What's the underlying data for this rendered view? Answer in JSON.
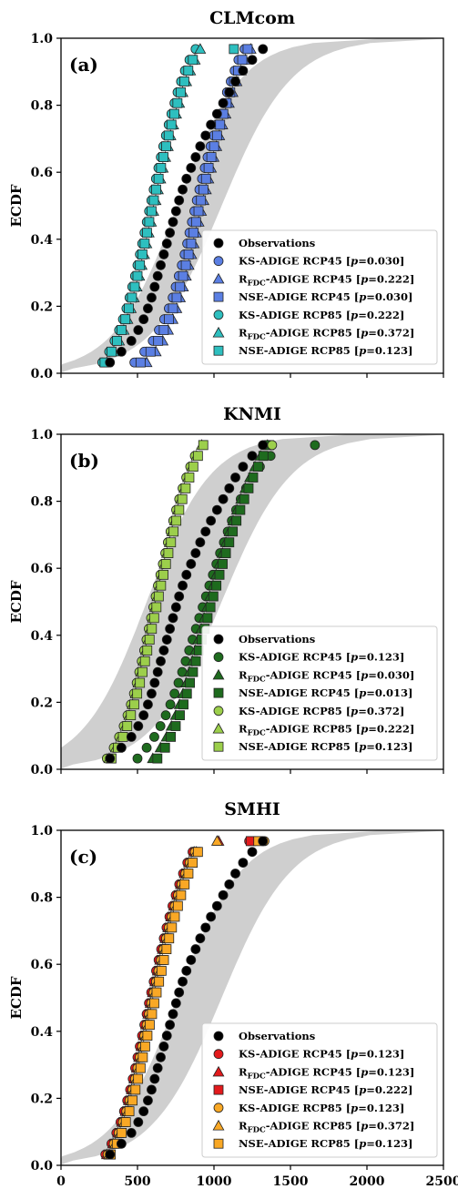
{
  "chart_data": [
    {
      "type": "scatter",
      "title": "CLMcom",
      "panel_label": "(a)",
      "ylabel": "ECDF",
      "xlim": [
        0,
        2500
      ],
      "ylim": [
        0,
        1
      ],
      "xticks": [
        "0",
        "500",
        "1000",
        "1500",
        "2000",
        "2500"
      ],
      "yticks": [
        "0.0",
        "0.2",
        "0.4",
        "0.6",
        "0.8",
        "1.0"
      ],
      "show_xticklabels": false,
      "legend_position": "lower-right",
      "band": {
        "lower_median": 760,
        "upper_median": 1050
      },
      "series": [
        {
          "key": "obs",
          "name": "Observations",
          "marker": "circle",
          "color": "#000000",
          "values": [
            320,
            395,
            460,
            505,
            540,
            568,
            592,
            612,
            632,
            652,
            672,
            692,
            712,
            732,
            752,
            772,
            795,
            820,
            850,
            880,
            910,
            945,
            980,
            1020,
            1060,
            1100,
            1140,
            1190,
            1250,
            1320
          ]
        },
        {
          "key": "ks45",
          "name_main": "KS-ADIGE RCP45 [",
          "name_p": "p",
          "name_tail": "=0.030]",
          "marker": "circle",
          "color": "#5b7fe3",
          "values": [
            480,
            545,
            600,
            640,
            675,
            705,
            730,
            750,
            770,
            790,
            808,
            825,
            840,
            856,
            872,
            888,
            905,
            922,
            940,
            958,
            978,
            998,
            1018,
            1040,
            1062,
            1085,
            1110,
            1135,
            1160,
            1200
          ]
        },
        {
          "key": "rfdc45",
          "sub": true,
          "name_pre": "R",
          "name_subscript": "FDC",
          "name_main": "-ADIGE RCP45 [",
          "name_p": "p",
          "name_tail": "=0.222]",
          "marker": "triangle",
          "color": "#5b7fe3",
          "values": [
            560,
            620,
            665,
            700,
            730,
            755,
            778,
            798,
            817,
            835,
            852,
            868,
            884,
            900,
            916,
            932,
            948,
            964,
            981,
            998,
            1016,
            1035,
            1055,
            1076,
            1098,
            1122,
            1148,
            1176,
            1206,
            1240
          ]
        },
        {
          "key": "nse45",
          "name_main": "NSE-ADIGE RCP45 [",
          "name_p": "p",
          "name_tail": "=0.030]",
          "marker": "square",
          "color": "#5b7fe3",
          "values": [
            520,
            585,
            635,
            672,
            705,
            732,
            756,
            778,
            798,
            816,
            834,
            851,
            867,
            883,
            899,
            915,
            931,
            948,
            965,
            983,
            1001,
            1020,
            1040,
            1061,
            1083,
            1106,
            1131,
            1157,
            1185,
            1220
          ]
        },
        {
          "key": "ks85",
          "name_main": "KS-ADIGE RCP85 [",
          "name_p": "p",
          "name_tail": "=0.222]",
          "marker": "circle",
          "color": "#2ebfbf",
          "values": [
            270,
            315,
            350,
            380,
            405,
            428,
            448,
            466,
            484,
            500,
            516,
            531,
            546,
            561,
            576,
            591,
            606,
            621,
            637,
            653,
            669,
            686,
            704,
            722,
            742,
            762,
            785,
            810,
            840,
            880
          ]
        },
        {
          "key": "rfdc85",
          "sub": true,
          "name_pre": "R",
          "name_subscript": "FDC",
          "name_main": "-ADIGE RCP85 [",
          "name_p": "p",
          "name_tail": "=0.372]",
          "marker": "triangle",
          "color": "#2ebfbf",
          "values": [
            300,
            345,
            380,
            410,
            435,
            457,
            477,
            495,
            512,
            528,
            544,
            559,
            574,
            589,
            604,
            619,
            634,
            650,
            666,
            682,
            699,
            716,
            734,
            753,
            773,
            795,
            819,
            845,
            875,
            910
          ]
        },
        {
          "key": "nse85",
          "name_main": "NSE-ADIGE RCP85 [",
          "name_p": "p",
          "name_tail": "=0.123]",
          "marker": "square",
          "color": "#2ebfbf",
          "values": [
            285,
            330,
            366,
            396,
            421,
            444,
            464,
            482,
            500,
            516,
            532,
            547,
            562,
            577,
            592,
            607,
            622,
            638,
            654,
            670,
            687,
            704,
            722,
            741,
            761,
            783,
            806,
            832,
            862,
            1130
          ]
        }
      ]
    },
    {
      "type": "scatter",
      "title": "KNMI",
      "panel_label": "(b)",
      "ylabel": "ECDF",
      "xlim": [
        0,
        2500
      ],
      "ylim": [
        0,
        1
      ],
      "xticks": [
        "0",
        "500",
        "1000",
        "1500",
        "2000",
        "2500"
      ],
      "yticks": [
        "0.0",
        "0.2",
        "0.4",
        "0.6",
        "0.8",
        "1.0"
      ],
      "show_xticklabels": false,
      "legend_position": "lower-right",
      "band": {
        "lower_median": 560,
        "upper_median": 1050
      },
      "series": [
        {
          "key": "obs",
          "name": "Observations",
          "marker": "circle",
          "color": "#000000",
          "values": [
            320,
            395,
            460,
            505,
            540,
            568,
            592,
            612,
            632,
            652,
            672,
            692,
            712,
            732,
            752,
            772,
            795,
            820,
            850,
            880,
            910,
            945,
            980,
            1020,
            1060,
            1100,
            1140,
            1190,
            1250,
            1320
          ]
        },
        {
          "key": "ks45",
          "name_main": "KS-ADIGE RCP45 [",
          "name_p": "p",
          "name_tail": "=0.123]",
          "marker": "circle",
          "color": "#1e6b1e",
          "values": [
            500,
            560,
            610,
            650,
            685,
            715,
            742,
            768,
            792,
            815,
            838,
            860,
            882,
            904,
            926,
            948,
            970,
            993,
            1016,
            1040,
            1065,
            1090,
            1117,
            1145,
            1175,
            1210,
            1250,
            1300,
            1370,
            1660
          ]
        },
        {
          "key": "rfdc45",
          "sub": true,
          "name_pre": "R",
          "name_subscript": "FDC",
          "name_main": "-ADIGE RCP45 [",
          "name_p": "p",
          "name_tail": "=0.030]",
          "marker": "triangle",
          "color": "#1e6b1e",
          "values": [
            600,
            650,
            690,
            722,
            750,
            775,
            798,
            820,
            840,
            860,
            879,
            898,
            917,
            936,
            955,
            974,
            994,
            1014,
            1035,
            1056,
            1078,
            1101,
            1125,
            1150,
            1177,
            1205,
            1235,
            1268,
            1305,
            1350
          ]
        },
        {
          "key": "nse45",
          "name_main": "NSE-ADIGE RCP45 [",
          "name_p": "p",
          "name_tail": "=0.013]",
          "marker": "square",
          "color": "#1e6b1e",
          "values": [
            630,
            680,
            718,
            750,
            777,
            801,
            823,
            843,
            863,
            882,
            901,
            920,
            939,
            958,
            977,
            996,
            1016,
            1036,
            1057,
            1078,
            1100,
            1123,
            1147,
            1172,
            1198,
            1226,
            1256,
            1288,
            1323,
            1360
          ]
        },
        {
          "key": "ks85",
          "name_main": "KS-ADIGE RCP85 [",
          "name_p": "p",
          "name_tail": "=0.372]",
          "marker": "circle",
          "color": "#9ccf4b",
          "values": [
            300,
            345,
            380,
            410,
            435,
            457,
            477,
            495,
            512,
            528,
            544,
            559,
            574,
            589,
            604,
            619,
            634,
            650,
            666,
            682,
            699,
            716,
            734,
            753,
            773,
            795,
            819,
            845,
            875,
            1380
          ]
        },
        {
          "key": "rfdc85",
          "sub": true,
          "name_pre": "R",
          "name_subscript": "FDC",
          "name_main": "-ADIGE RCP85 [",
          "name_p": "p",
          "name_tail": "=0.222]",
          "marker": "triangle",
          "color": "#9ccf4b",
          "values": [
            315,
            358,
            392,
            421,
            446,
            468,
            488,
            506,
            523,
            539,
            555,
            570,
            585,
            600,
            615,
            630,
            645,
            661,
            677,
            693,
            710,
            727,
            745,
            764,
            784,
            806,
            830,
            856,
            886,
            920
          ]
        },
        {
          "key": "nse85",
          "name_main": "NSE-ADIGE RCP85 [",
          "name_p": "p",
          "name_tail": "=0.123]",
          "marker": "square",
          "color": "#9ccf4b",
          "values": [
            330,
            372,
            405,
            433,
            457,
            479,
            498,
            516,
            533,
            549,
            564,
            579,
            594,
            609,
            624,
            639,
            654,
            670,
            686,
            702,
            719,
            736,
            754,
            773,
            793,
            815,
            839,
            865,
            895,
            930
          ]
        }
      ]
    },
    {
      "type": "scatter",
      "title": "SMHI",
      "panel_label": "(c)",
      "ylabel": "ECDF",
      "xlim": [
        0,
        2500
      ],
      "ylim": [
        0,
        1
      ],
      "xticks": [
        "0",
        "500",
        "1000",
        "1500",
        "2000",
        "2500"
      ],
      "yticks": [
        "0.0",
        "0.2",
        "0.4",
        "0.6",
        "0.8",
        "1.0"
      ],
      "show_xticklabels": true,
      "legend_position": "lower-right",
      "band": {
        "lower_median": 760,
        "upper_median": 1050
      },
      "series": [
        {
          "key": "obs",
          "name": "Observations",
          "marker": "circle",
          "color": "#000000",
          "values": [
            320,
            395,
            460,
            505,
            540,
            568,
            592,
            612,
            632,
            652,
            672,
            692,
            712,
            732,
            752,
            772,
            795,
            820,
            850,
            880,
            910,
            945,
            980,
            1020,
            1060,
            1100,
            1140,
            1190,
            1250,
            1320
          ]
        },
        {
          "key": "ks45",
          "name_main": "KS-ADIGE RCP45 [",
          "name_p": "p",
          "name_tail": "=0.123]",
          "marker": "circle",
          "color": "#e31a1c",
          "values": [
            290,
            330,
            362,
            389,
            412,
            433,
            452,
            469,
            485,
            500,
            515,
            530,
            545,
            560,
            575,
            590,
            606,
            622,
            638,
            655,
            672,
            690,
            709,
            729,
            750,
            773,
            798,
            826,
            860,
            1230
          ]
        },
        {
          "key": "rfdc45",
          "sub": true,
          "name_pre": "R",
          "name_subscript": "FDC",
          "name_main": "-ADIGE RCP45 [",
          "name_p": "p",
          "name_tail": "=0.123]",
          "marker": "triangle",
          "color": "#e31a1c",
          "values": [
            300,
            340,
            372,
            399,
            422,
            443,
            462,
            479,
            495,
            510,
            525,
            540,
            555,
            570,
            585,
            600,
            616,
            632,
            648,
            665,
            682,
            700,
            719,
            739,
            760,
            783,
            808,
            836,
            870,
            1030
          ]
        },
        {
          "key": "nse45",
          "name_main": "NSE-ADIGE RCP45 [",
          "name_p": "p",
          "name_tail": "=0.222]",
          "marker": "square",
          "color": "#e31a1c",
          "values": [
            310,
            350,
            382,
            409,
            432,
            453,
            472,
            489,
            505,
            520,
            535,
            550,
            565,
            580,
            595,
            610,
            626,
            642,
            658,
            675,
            692,
            710,
            729,
            749,
            770,
            793,
            818,
            846,
            880,
            1240
          ]
        },
        {
          "key": "ks85",
          "name_main": "KS-ADIGE RCP85 [",
          "name_p": "p",
          "name_tail": "=0.123]",
          "marker": "circle",
          "color": "#f9a825",
          "values": [
            305,
            345,
            377,
            404,
            427,
            448,
            467,
            484,
            500,
            515,
            530,
            545,
            560,
            575,
            590,
            605,
            621,
            637,
            653,
            670,
            687,
            705,
            724,
            744,
            765,
            788,
            813,
            841,
            875,
            1330
          ]
        },
        {
          "key": "rfdc85",
          "sub": true,
          "name_pre": "R",
          "name_subscript": "FDC",
          "name_main": "-ADIGE RCP85 [",
          "name_p": "p",
          "name_tail": "=0.372]",
          "marker": "triangle",
          "color": "#f9a825",
          "values": [
            315,
            355,
            387,
            414,
            437,
            458,
            477,
            494,
            510,
            525,
            540,
            555,
            570,
            585,
            600,
            615,
            631,
            647,
            663,
            680,
            697,
            715,
            734,
            754,
            775,
            798,
            823,
            851,
            885,
            1020
          ]
        },
        {
          "key": "nse85",
          "name_main": "NSE-ADIGE RCP85 [",
          "name_p": "p",
          "name_tail": "=0.123]",
          "marker": "square",
          "color": "#f9a825",
          "values": [
            325,
            365,
            397,
            424,
            447,
            468,
            487,
            504,
            520,
            535,
            550,
            565,
            580,
            595,
            610,
            625,
            641,
            657,
            673,
            690,
            707,
            725,
            744,
            764,
            785,
            808,
            833,
            861,
            895,
            1290
          ]
        }
      ]
    }
  ]
}
